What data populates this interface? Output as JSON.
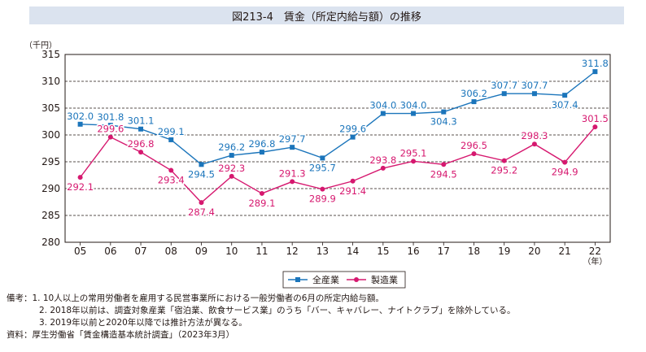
{
  "title": "図213-4　賃金（所定内給与額）の推移",
  "chart_data": {
    "type": "line",
    "y_unit": "（千円）",
    "x_unit": "（年）",
    "categories": [
      "05",
      "06",
      "07",
      "08",
      "09",
      "10",
      "11",
      "12",
      "13",
      "14",
      "15",
      "16",
      "17",
      "18",
      "19",
      "20",
      "21",
      "22"
    ],
    "ylim": [
      280,
      315
    ],
    "yticks": [
      "315",
      "310",
      "305",
      "300",
      "295",
      "290",
      "285",
      "280"
    ],
    "ytick_values": [
      315,
      310,
      305,
      300,
      295,
      290,
      285,
      280
    ],
    "grid": "horizontal-dashed",
    "legend_position": "bottom-center",
    "series": [
      {
        "name": "全産業",
        "color": "#1b75bb",
        "marker": "square",
        "values": [
          302.0,
          301.8,
          301.1,
          299.1,
          294.5,
          296.2,
          296.8,
          297.7,
          295.7,
          299.6,
          304.0,
          304.0,
          304.3,
          306.2,
          307.7,
          307.7,
          307.4,
          311.8
        ],
        "labels": [
          "302.0",
          "301.8",
          "301.1",
          "299.1",
          "294.5",
          "296.2",
          "296.8",
          "297.7",
          "295.7",
          "299.6",
          "304.0",
          "304.0",
          "304.3",
          "306.2",
          "307.7",
          "307.7",
          "307.4",
          "311.8"
        ]
      },
      {
        "name": "製造業",
        "color": "#d6186f",
        "marker": "circle",
        "values": [
          292.1,
          299.6,
          296.8,
          293.4,
          287.4,
          292.3,
          289.1,
          291.3,
          289.9,
          291.4,
          293.8,
          295.1,
          294.5,
          296.5,
          295.2,
          298.3,
          294.9,
          301.5
        ],
        "labels": [
          "292.1",
          "299.6",
          "296.8",
          "293.4",
          "287.4",
          "292.3",
          "289.1",
          "291.3",
          "289.9",
          "291.4",
          "293.8",
          "295.1",
          "294.5",
          "296.5",
          "295.2",
          "298.3",
          "294.9",
          "301.5"
        ]
      }
    ]
  },
  "notes": {
    "line1": "備考：1. 10人以上の常用労働者を雇用する民営事業所における一般労働者の6月の所定内給与額。",
    "line2": "2. 2018年以前は、調査対象産業「宿泊業、飲食サービス業」のうち「バー、キャバレー、ナイトクラブ」を除外している。",
    "line3": "3. 2019年以前と2020年以降では推計方法が異なる。",
    "line4": "資料：厚生労働省「賃金構造基本統計調査」（2023年3月）"
  }
}
